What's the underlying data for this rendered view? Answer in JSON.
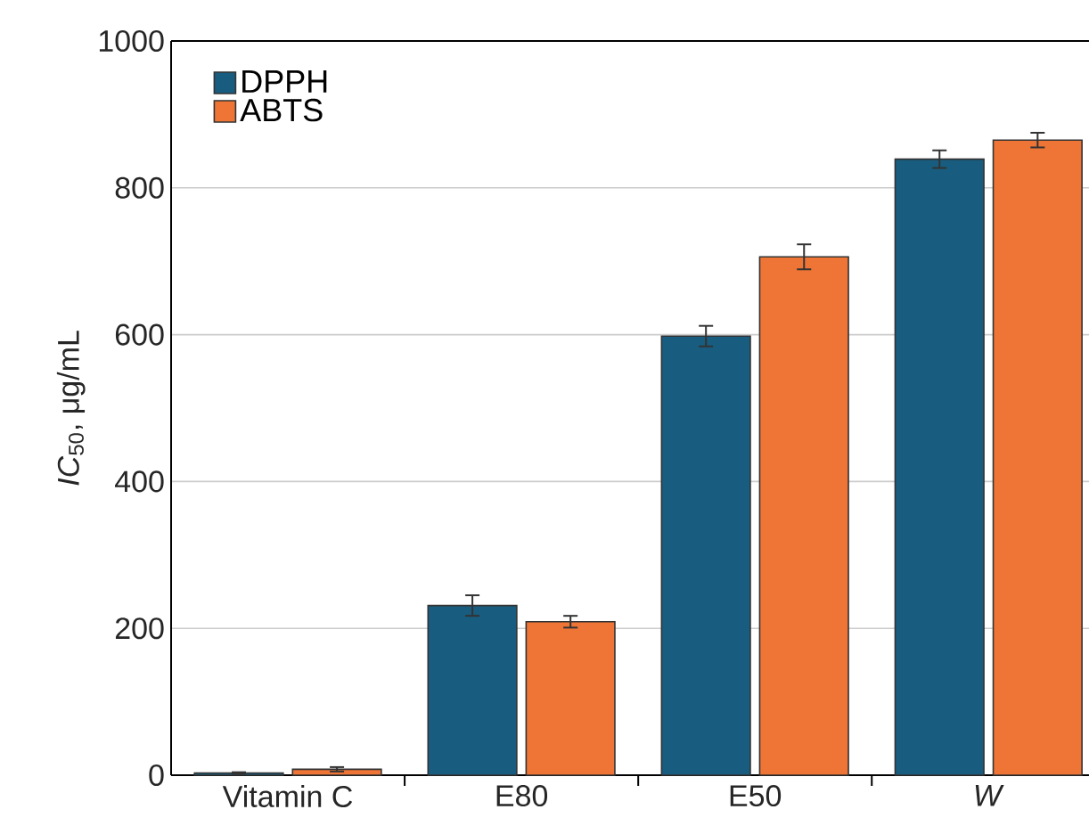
{
  "chart_data": {
    "type": "bar",
    "ylabel": "*IC*$_{50}$, μg/mL",
    "categories": [
      "Vitamin C",
      "E80",
      "E50",
      "*W*"
    ],
    "series": [
      {
        "name": "DPPH",
        "color": "#185d7f",
        "values": [
          3,
          231,
          598,
          839
        ],
        "errors": [
          1,
          14,
          14,
          12
        ]
      },
      {
        "name": "ABTS",
        "color": "#ee7536",
        "values": [
          8,
          209,
          706,
          865
        ],
        "errors": [
          3,
          8,
          17,
          10
        ]
      }
    ],
    "ylim": [
      0,
      1000
    ],
    "yticks": [
      0,
      200,
      400,
      600,
      800,
      1000
    ],
    "grid": "y",
    "legend": "top left"
  }
}
